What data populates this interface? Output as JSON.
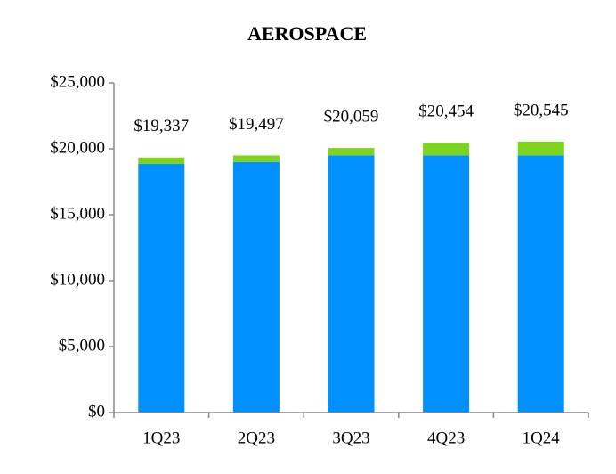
{
  "chart_data": {
    "type": "stacked-bar",
    "title": "AEROSPACE",
    "categories": [
      "1Q23",
      "2Q23",
      "3Q23",
      "4Q23",
      "1Q24"
    ],
    "series": [
      {
        "color": "#0090ff",
        "values": [
          18850,
          19000,
          19500,
          19500,
          19500
        ]
      },
      {
        "color": "#7ed321",
        "values": [
          487,
          497,
          559,
          954,
          1045
        ]
      }
    ],
    "totals": [
      19337,
      19497,
      20059,
      20454,
      20545
    ],
    "total_labels": [
      "$19,337",
      "$19,497",
      "$20,059",
      "$20,454",
      "$20,545"
    ],
    "ylim": [
      0,
      25000
    ],
    "yticks": [
      {
        "value": 0,
        "label": "$0"
      },
      {
        "value": 5000,
        "label": "$5,000"
      },
      {
        "value": 10000,
        "label": "$10,000"
      },
      {
        "value": 15000,
        "label": "$15,000"
      },
      {
        "value": 20000,
        "label": "$20,000"
      },
      {
        "value": 25000,
        "label": "$25,000"
      }
    ]
  }
}
